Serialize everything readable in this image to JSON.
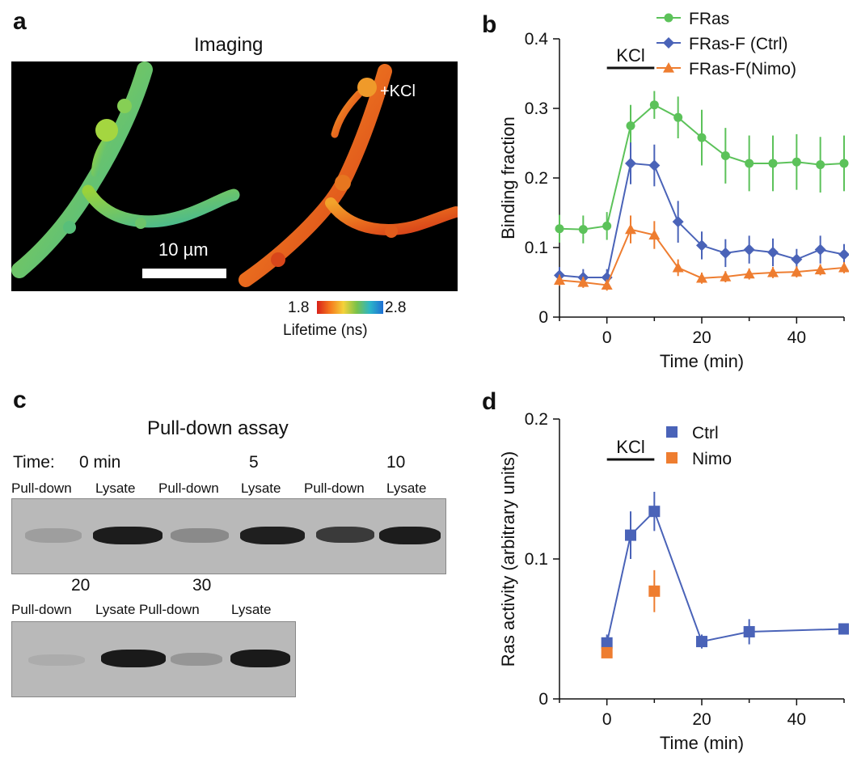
{
  "panel_a": {
    "letter": "a",
    "title": "Imaging",
    "kcl_label": "+KCl",
    "scale_bar_label": "10 µm",
    "colorbar_min": "1.8",
    "colorbar_max": "2.8",
    "colorbar_label": "Lifetime (ns)"
  },
  "panel_c": {
    "letter": "c",
    "title": "Pull-down assay",
    "time_prefix": "Time:",
    "row1_times": [
      "0 min",
      "5",
      "10"
    ],
    "row2_times": [
      "20",
      "30"
    ],
    "lane_pulldown": "Pull-down",
    "lane_lysate": "Lysate"
  },
  "chart_data": [
    {
      "panel": "b",
      "type": "line",
      "xlabel": "Time (min)",
      "ylabel": "Binding fraction",
      "xlim": [
        -10,
        50
      ],
      "ylim": [
        0,
        0.4
      ],
      "xticks": [
        0,
        20,
        40
      ],
      "yticks": [
        0,
        0.1,
        0.2,
        0.3,
        0.4
      ],
      "annotation": "KCl",
      "annotation_range": [
        0,
        10
      ],
      "legend_position": "top-right",
      "series": [
        {
          "name": "FRas",
          "color": "#5cc25a",
          "marker": "circle",
          "x": [
            -10,
            -5,
            0,
            5,
            10,
            15,
            20,
            25,
            30,
            35,
            40,
            45,
            50
          ],
          "y": [
            0.127,
            0.126,
            0.131,
            0.275,
            0.305,
            0.287,
            0.258,
            0.232,
            0.221,
            0.221,
            0.223,
            0.219,
            0.221
          ],
          "err": [
            0.02,
            0.02,
            0.02,
            0.03,
            0.02,
            0.03,
            0.04,
            0.04,
            0.04,
            0.04,
            0.04,
            0.04,
            0.04
          ]
        },
        {
          "name": "FRas-F (Ctrl)",
          "color": "#4a63b8",
          "marker": "diamond",
          "x": [
            -10,
            -5,
            0,
            5,
            10,
            15,
            20,
            25,
            30,
            35,
            40,
            45,
            50
          ],
          "y": [
            0.06,
            0.057,
            0.057,
            0.221,
            0.218,
            0.137,
            0.103,
            0.092,
            0.097,
            0.093,
            0.083,
            0.097,
            0.09
          ],
          "err": [
            0.012,
            0.012,
            0.012,
            0.03,
            0.03,
            0.03,
            0.02,
            0.02,
            0.02,
            0.02,
            0.015,
            0.02,
            0.015
          ]
        },
        {
          "name": "FRas-F(Nimo)",
          "color": "#ee7d30",
          "marker": "triangle",
          "x": [
            -10,
            -5,
            0,
            5,
            10,
            15,
            20,
            25,
            30,
            35,
            40,
            45,
            50
          ],
          "y": [
            0.053,
            0.05,
            0.046,
            0.126,
            0.118,
            0.071,
            0.056,
            0.058,
            0.062,
            0.064,
            0.065,
            0.068,
            0.071
          ],
          "err": [
            0.008,
            0.008,
            0.008,
            0.02,
            0.02,
            0.012,
            0.008,
            0.008,
            0.008,
            0.008,
            0.008,
            0.008,
            0.008
          ]
        }
      ]
    },
    {
      "panel": "d",
      "type": "line",
      "xlabel": "Time (min)",
      "ylabel": "Ras activity (arbitrary units)",
      "xlim": [
        -10,
        50
      ],
      "ylim": [
        0,
        0.2
      ],
      "xticks": [
        0,
        20,
        40
      ],
      "yticks": [
        0,
        0.1,
        0.2
      ],
      "annotation": "KCl",
      "annotation_range": [
        0,
        10
      ],
      "legend_position": "top-right",
      "series": [
        {
          "name": "Ctrl",
          "color": "#4a63b8",
          "marker": "square",
          "x": [
            0,
            5,
            10,
            20,
            30,
            50
          ],
          "y": [
            0.04,
            0.117,
            0.134,
            0.041,
            0.048,
            0.05
          ],
          "err": [
            0.006,
            0.017,
            0.014,
            0.005,
            0.009,
            0.004
          ]
        },
        {
          "name": "Nimo",
          "color": "#ee7d30",
          "marker": "square",
          "x": [
            0,
            10
          ],
          "y": [
            0.033,
            0.077
          ],
          "err": [
            0.003,
            0.015
          ]
        }
      ]
    }
  ],
  "panel_b_letter": "b",
  "panel_d_letter": "d"
}
